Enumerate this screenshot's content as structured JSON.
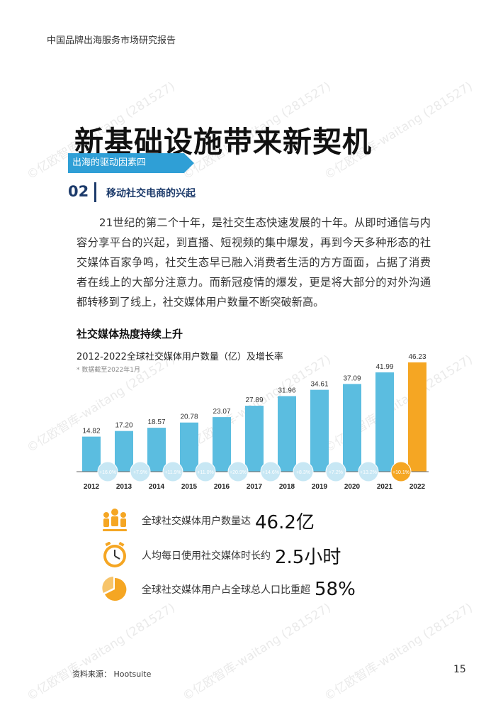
{
  "header": {
    "text": "中国品牌出海服务市场研究报告"
  },
  "title": "新基础设施带来新契机",
  "ribbon": "出海的驱动因素四",
  "section": {
    "number": "02",
    "title": "移动社交电商的兴起"
  },
  "paragraph": "21世纪的第二个十年，是社交生态快速发展的十年。从即时通信与内容分享平台的兴起，到直播、短视频的集中爆发，再到今天多种形态的社交媒体百家争鸣，社交生态早已融入消费者生活的方方面面，占据了消费者在线上的大部分注意力。而新冠疫情的爆发，更是将大部分的对外沟通都转移到了线上，社交媒体用户数量不断突破新高。",
  "chart_heading": "社交媒体热度持续上升",
  "chart_data": {
    "type": "bar",
    "title": "2012-2022全球社交媒体用户数量（亿）及增长率",
    "note": "* 数据截至2022年1月",
    "categories": [
      "2012",
      "2013",
      "2014",
      "2015",
      "2016",
      "2017",
      "2018",
      "2019",
      "2020",
      "2021",
      "2022"
    ],
    "values": [
      14.82,
      17.2,
      18.57,
      20.78,
      23.07,
      27.89,
      31.96,
      34.61,
      37.09,
      41.99,
      46.23
    ],
    "value_labels": [
      "14.82",
      "17.20",
      "18.57",
      "20.78",
      "23.07",
      "27.89",
      "31.96",
      "34.61",
      "37.09",
      "41.99",
      "46.23"
    ],
    "growth_labels": [
      "+16.0%",
      "+7.9%",
      "+11.9%",
      "+11.0%",
      "+20.9%",
      "+14.6%",
      "+8.3%",
      "+7.2%",
      "+13.2%",
      "+10.1%"
    ],
    "ylim": [
      0,
      48
    ],
    "colors": {
      "bar": "#5bbde0",
      "highlight": "#f5a623",
      "growth_circle": "#c7e7f4",
      "highlight_circle": "#f5a623"
    }
  },
  "stats": [
    {
      "icon": "people-icon",
      "text": "全球社交媒体用户数量达",
      "value": "46.2亿"
    },
    {
      "icon": "clock-icon",
      "text": "人均每日使用社交媒体时长约",
      "value": "2.5小时"
    },
    {
      "icon": "pie-icon",
      "text": "全球社交媒体用户占全球总人口比重超",
      "value": "58%"
    }
  ],
  "source": "资料来源：  Hootsuite",
  "page_number": "15",
  "watermark": "©亿欧智库-waitang (281527)",
  "accent_color": "#f5a623"
}
